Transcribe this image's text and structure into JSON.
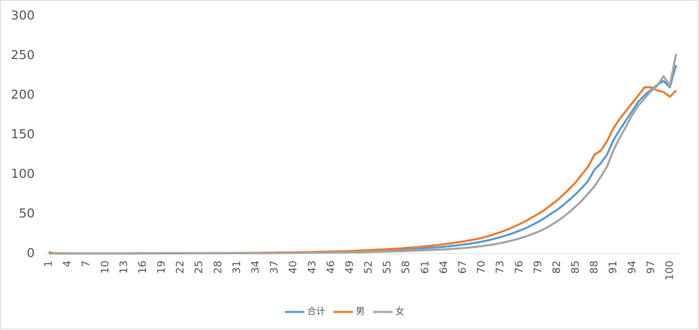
{
  "chart_data": {
    "type": "line",
    "categories": [
      "1",
      null,
      null,
      "4",
      null,
      null,
      "7",
      null,
      null,
      "10",
      null,
      null,
      "13",
      null,
      null,
      "16",
      null,
      null,
      "19",
      null,
      null,
      "22",
      null,
      null,
      "25",
      null,
      null,
      "28",
      null,
      null,
      "31",
      null,
      null,
      "34",
      null,
      null,
      "37",
      null,
      null,
      "40",
      null,
      null,
      "43",
      null,
      null,
      "46",
      null,
      null,
      "49",
      null,
      null,
      "52",
      null,
      null,
      "55",
      null,
      null,
      "58",
      null,
      null,
      "61",
      null,
      null,
      "64",
      null,
      null,
      "67",
      null,
      null,
      "70",
      null,
      null,
      "73",
      null,
      null,
      "76",
      null,
      null,
      "79",
      null,
      null,
      "82",
      null,
      null,
      "85",
      null,
      null,
      "88",
      null,
      null,
      "91",
      null,
      null,
      "94",
      null,
      null,
      "97",
      null,
      null,
      "100",
      null
    ],
    "series": [
      {
        "name": "合计",
        "color": "#5b9bd5",
        "values": [
          0.4,
          0.3,
          0.2,
          0.1,
          0.1,
          0.1,
          0.1,
          0.1,
          0.1,
          0.1,
          0.1,
          0.1,
          0.1,
          0.1,
          0.2,
          0.3,
          0.3,
          0.3,
          0.4,
          0.4,
          0.4,
          0.4,
          0.4,
          0.4,
          0.5,
          0.5,
          0.5,
          0.5,
          0.5,
          0.6,
          0.6,
          0.6,
          0.7,
          0.7,
          0.8,
          0.8,
          0.9,
          1.0,
          1.1,
          1.2,
          1.3,
          1.4,
          1.5,
          1.7,
          1.8,
          2.0,
          2.2,
          2.4,
          2.6,
          2.8,
          3.0,
          3.3,
          3.6,
          3.9,
          4.2,
          4.5,
          4.9,
          5.3,
          5.7,
          6.2,
          6.7,
          7.3,
          7.9,
          8.6,
          9.4,
          10.3,
          11.3,
          12.4,
          13.6,
          15,
          16.6,
          18.6,
          20.8,
          23.2,
          25.8,
          28.8,
          32,
          35.8,
          40,
          44.6,
          50,
          55,
          61,
          68,
          75,
          83,
          92,
          106,
          114,
          125,
          143,
          156,
          168,
          180,
          192,
          200,
          207,
          213,
          218,
          210,
          238
        ]
      },
      {
        "name": "男",
        "color": "#ed7d31",
        "values": [
          0.4,
          0.3,
          0.2,
          0.2,
          0.1,
          0.1,
          0.1,
          0.1,
          0.1,
          0.1,
          0.1,
          0.1,
          0.1,
          0.2,
          0.3,
          0.4,
          0.4,
          0.5,
          0.5,
          0.6,
          0.6,
          0.6,
          0.6,
          0.6,
          0.6,
          0.6,
          0.6,
          0.7,
          0.7,
          0.7,
          0.8,
          0.8,
          0.9,
          0.9,
          1.0,
          1.1,
          1.2,
          1.3,
          1.4,
          1.5,
          1.6,
          1.8,
          2.0,
          2.2,
          2.4,
          2.6,
          2.8,
          3.0,
          3.3,
          3.6,
          4.0,
          4.4,
          4.8,
          5.2,
          5.6,
          6.0,
          6.5,
          7.2,
          7.8,
          8.5,
          9.2,
          10,
          10.8,
          11.8,
          12.8,
          14,
          15.2,
          16.6,
          18,
          19.8,
          21.8,
          24.5,
          27,
          30,
          33.5,
          37,
          41,
          45.5,
          50,
          55,
          61,
          67,
          74,
          82,
          90,
          100,
          110,
          125,
          130,
          142,
          158,
          170,
          180,
          190,
          200,
          210,
          210,
          206,
          204,
          198,
          206
        ]
      },
      {
        "name": "女",
        "color": "#a5a5a5",
        "values": [
          2.0,
          0.4,
          0.2,
          0.1,
          0.1,
          0.1,
          0.1,
          0.1,
          0.1,
          0.1,
          0.1,
          0.1,
          0.1,
          0.1,
          0.1,
          0.2,
          0.2,
          0.2,
          0.2,
          0.2,
          0.2,
          0.2,
          0.2,
          0.3,
          0.3,
          0.3,
          0.3,
          0.3,
          0.3,
          0.4,
          0.4,
          0.4,
          0.5,
          0.5,
          0.5,
          0.6,
          0.6,
          0.7,
          0.7,
          0.8,
          0.8,
          0.9,
          1.0,
          1.1,
          1.2,
          1.3,
          1.4,
          1.5,
          1.6,
          1.7,
          1.8,
          2.0,
          2.2,
          2.4,
          2.6,
          2.8,
          3.0,
          3.3,
          3.6,
          3.9,
          4.2,
          4.5,
          4.9,
          5.3,
          5.8,
          6.3,
          6.9,
          7.6,
          8.4,
          9.3,
          10.4,
          11.7,
          13.2,
          14.9,
          16.8,
          19,
          21.5,
          24.3,
          27.5,
          31,
          35.5,
          40.5,
          46,
          52.5,
          59.5,
          67,
          76,
          85,
          97,
          110,
          130,
          146,
          160,
          175,
          187,
          196,
          205,
          212,
          224,
          212,
          252
        ]
      }
    ],
    "ylim": [
      0,
      300
    ],
    "yticks": [
      0,
      50,
      100,
      150,
      200,
      250,
      300
    ],
    "grid": false,
    "legend": "bottom"
  }
}
